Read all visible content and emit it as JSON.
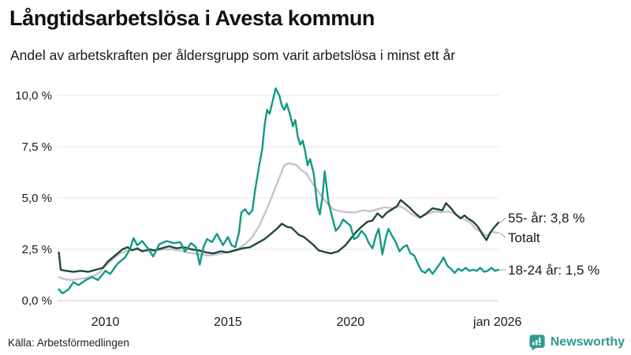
{
  "header": {
    "title": "Långtidsarbetslösa i Avesta kommun",
    "subtitle": "Andel av arbetskraften per åldersgrupp som varit arbetslösa i minst ett år"
  },
  "chart_data": {
    "type": "line",
    "title": "Långtidsarbetslösa i Avesta kommun",
    "subtitle": "Andel av arbetskraften per åldersgrupp som varit arbetslösa i minst ett år",
    "unit": "%",
    "x_axis": {
      "range": [
        2008.05,
        2026.04
      ],
      "ticks": [
        {
          "label": "2010",
          "year": 2010
        },
        {
          "label": "2015",
          "year": 2015
        },
        {
          "label": "2020",
          "year": 2020
        },
        {
          "label": "jan 2026",
          "year": 2026.0
        }
      ],
      "grid": false
    },
    "y_axis": {
      "range": [
        0,
        10.6
      ],
      "ticks": [
        {
          "label": "0,0 %",
          "value": 0
        },
        {
          "label": "2,5 %",
          "value": 2.5
        },
        {
          "label": "5,0 %",
          "value": 5
        },
        {
          "label": "7,5 %",
          "value": 7.5
        },
        {
          "label": "10,0 %",
          "value": 10
        }
      ],
      "grid": true
    },
    "style": {
      "grid_color": "#e4e4e8",
      "baseline_color": "#c9c9cf",
      "label_color": "#1a1a1a",
      "connector_color": "#9a9aa2"
    },
    "legend_position": "end-of-line",
    "series": [
      {
        "id": "totalt",
        "name": "Totalt",
        "end_label": "Totalt",
        "end_value": 3.3,
        "color": "#c5c3d0",
        "label_dy": 6,
        "points": [
          [
            2008.1,
            1.15
          ],
          [
            2008.3,
            1.05
          ],
          [
            2008.6,
            1.0
          ],
          [
            2008.9,
            1.05
          ],
          [
            2009.2,
            1.1
          ],
          [
            2009.5,
            1.2
          ],
          [
            2009.8,
            1.4
          ],
          [
            2010.0,
            1.7
          ],
          [
            2010.3,
            2.0
          ],
          [
            2010.6,
            2.3
          ],
          [
            2010.9,
            2.45
          ],
          [
            2011.2,
            2.5
          ],
          [
            2011.5,
            2.45
          ],
          [
            2011.8,
            2.4
          ],
          [
            2012.1,
            2.45
          ],
          [
            2012.4,
            2.5
          ],
          [
            2012.7,
            2.5
          ],
          [
            2013.0,
            2.45
          ],
          [
            2013.3,
            2.35
          ],
          [
            2013.6,
            2.3
          ],
          [
            2013.9,
            2.25
          ],
          [
            2014.2,
            2.2
          ],
          [
            2014.5,
            2.25
          ],
          [
            2014.8,
            2.3
          ],
          [
            2015.1,
            2.4
          ],
          [
            2015.4,
            2.5
          ],
          [
            2015.7,
            2.75
          ],
          [
            2016.0,
            3.1
          ],
          [
            2016.3,
            3.7
          ],
          [
            2016.6,
            4.5
          ],
          [
            2016.9,
            5.4
          ],
          [
            2017.1,
            6.0
          ],
          [
            2017.3,
            6.6
          ],
          [
            2017.5,
            6.7
          ],
          [
            2017.8,
            6.6
          ],
          [
            2018.0,
            6.35
          ],
          [
            2018.2,
            6.2
          ],
          [
            2018.4,
            5.8
          ],
          [
            2018.7,
            5.3
          ],
          [
            2019.0,
            4.8
          ],
          [
            2019.3,
            4.45
          ],
          [
            2019.6,
            4.35
          ],
          [
            2019.9,
            4.3
          ],
          [
            2020.2,
            4.3
          ],
          [
            2020.5,
            4.4
          ],
          [
            2020.8,
            4.35
          ],
          [
            2021.1,
            4.45
          ],
          [
            2021.4,
            4.55
          ],
          [
            2021.7,
            4.5
          ],
          [
            2022.0,
            4.6
          ],
          [
            2022.2,
            4.5
          ],
          [
            2022.5,
            4.2
          ],
          [
            2022.8,
            4.05
          ],
          [
            2023.1,
            4.2
          ],
          [
            2023.4,
            4.35
          ],
          [
            2023.7,
            4.3
          ],
          [
            2024.0,
            4.35
          ],
          [
            2024.3,
            4.2
          ],
          [
            2024.6,
            4.0
          ],
          [
            2024.9,
            3.8
          ],
          [
            2025.1,
            3.5
          ],
          [
            2025.35,
            3.35
          ],
          [
            2025.55,
            3.15
          ],
          [
            2025.75,
            3.35
          ],
          [
            2026.04,
            3.3
          ]
        ]
      },
      {
        "id": "55-ar",
        "name": "55- år",
        "end_label": "55- år: 3,8 %",
        "end_value": 3.8,
        "color": "#22473e",
        "label_dy": -6,
        "points": [
          [
            2008.1,
            2.35
          ],
          [
            2008.18,
            1.5
          ],
          [
            2008.4,
            1.45
          ],
          [
            2008.7,
            1.4
          ],
          [
            2009.0,
            1.45
          ],
          [
            2009.3,
            1.4
          ],
          [
            2009.6,
            1.5
          ],
          [
            2009.9,
            1.6
          ],
          [
            2010.1,
            1.9
          ],
          [
            2010.4,
            2.2
          ],
          [
            2010.7,
            2.5
          ],
          [
            2010.9,
            2.6
          ],
          [
            2011.1,
            2.45
          ],
          [
            2011.3,
            2.55
          ],
          [
            2011.5,
            2.4
          ],
          [
            2011.8,
            2.5
          ],
          [
            2012.0,
            2.45
          ],
          [
            2012.3,
            2.55
          ],
          [
            2012.6,
            2.65
          ],
          [
            2012.9,
            2.55
          ],
          [
            2013.2,
            2.6
          ],
          [
            2013.5,
            2.5
          ],
          [
            2013.8,
            2.45
          ],
          [
            2014.1,
            2.35
          ],
          [
            2014.4,
            2.3
          ],
          [
            2014.7,
            2.4
          ],
          [
            2015.0,
            2.35
          ],
          [
            2015.3,
            2.45
          ],
          [
            2015.6,
            2.55
          ],
          [
            2015.9,
            2.6
          ],
          [
            2016.2,
            2.8
          ],
          [
            2016.5,
            3.0
          ],
          [
            2016.8,
            3.3
          ],
          [
            2017.0,
            3.5
          ],
          [
            2017.2,
            3.75
          ],
          [
            2017.4,
            3.6
          ],
          [
            2017.6,
            3.55
          ],
          [
            2017.9,
            3.2
          ],
          [
            2018.1,
            3.1
          ],
          [
            2018.3,
            2.9
          ],
          [
            2018.5,
            2.7
          ],
          [
            2018.7,
            2.45
          ],
          [
            2019.0,
            2.35
          ],
          [
            2019.2,
            2.3
          ],
          [
            2019.5,
            2.4
          ],
          [
            2019.8,
            2.7
          ],
          [
            2020.0,
            3.0
          ],
          [
            2020.2,
            3.3
          ],
          [
            2020.45,
            3.6
          ],
          [
            2020.7,
            3.85
          ],
          [
            2020.9,
            3.9
          ],
          [
            2021.1,
            4.25
          ],
          [
            2021.3,
            4.05
          ],
          [
            2021.5,
            4.3
          ],
          [
            2021.7,
            4.45
          ],
          [
            2021.9,
            4.6
          ],
          [
            2022.05,
            4.9
          ],
          [
            2022.2,
            4.75
          ],
          [
            2022.4,
            4.55
          ],
          [
            2022.6,
            4.3
          ],
          [
            2022.85,
            4.05
          ],
          [
            2023.1,
            4.25
          ],
          [
            2023.35,
            4.5
          ],
          [
            2023.55,
            4.45
          ],
          [
            2023.75,
            4.4
          ],
          [
            2023.9,
            4.75
          ],
          [
            2024.1,
            4.5
          ],
          [
            2024.3,
            4.2
          ],
          [
            2024.5,
            4.0
          ],
          [
            2024.65,
            4.15
          ],
          [
            2024.8,
            4.0
          ],
          [
            2025.0,
            3.85
          ],
          [
            2025.2,
            3.6
          ],
          [
            2025.4,
            3.2
          ],
          [
            2025.55,
            2.95
          ],
          [
            2025.7,
            3.3
          ],
          [
            2025.85,
            3.55
          ],
          [
            2026.04,
            3.8
          ]
        ]
      },
      {
        "id": "18-24-ar",
        "name": "18-24 år",
        "end_label": "18-24 år: 1,5 %",
        "end_value": 1.5,
        "color": "#129a84",
        "label_dy": 0,
        "points": [
          [
            2008.1,
            0.55
          ],
          [
            2008.25,
            0.35
          ],
          [
            2008.5,
            0.55
          ],
          [
            2008.7,
            0.9
          ],
          [
            2008.9,
            0.75
          ],
          [
            2009.2,
            1.0
          ],
          [
            2009.45,
            1.15
          ],
          [
            2009.7,
            1.0
          ],
          [
            2010.0,
            1.45
          ],
          [
            2010.2,
            1.3
          ],
          [
            2010.5,
            1.8
          ],
          [
            2010.8,
            2.1
          ],
          [
            2011.0,
            2.5
          ],
          [
            2011.15,
            3.05
          ],
          [
            2011.3,
            2.7
          ],
          [
            2011.5,
            2.9
          ],
          [
            2011.7,
            2.6
          ],
          [
            2011.95,
            2.15
          ],
          [
            2012.2,
            2.75
          ],
          [
            2012.5,
            2.9
          ],
          [
            2012.8,
            2.8
          ],
          [
            2013.05,
            2.85
          ],
          [
            2013.25,
            2.4
          ],
          [
            2013.5,
            2.8
          ],
          [
            2013.7,
            2.6
          ],
          [
            2013.85,
            1.75
          ],
          [
            2014.0,
            2.6
          ],
          [
            2014.15,
            3.0
          ],
          [
            2014.35,
            2.85
          ],
          [
            2014.55,
            3.25
          ],
          [
            2014.8,
            2.7
          ],
          [
            2015.0,
            3.1
          ],
          [
            2015.15,
            2.7
          ],
          [
            2015.3,
            2.6
          ],
          [
            2015.45,
            3.3
          ],
          [
            2015.55,
            4.3
          ],
          [
            2015.7,
            4.45
          ],
          [
            2015.85,
            4.2
          ],
          [
            2016.0,
            4.4
          ],
          [
            2016.1,
            5.3
          ],
          [
            2016.25,
            6.4
          ],
          [
            2016.4,
            7.4
          ],
          [
            2016.5,
            8.6
          ],
          [
            2016.6,
            9.3
          ],
          [
            2016.7,
            9.1
          ],
          [
            2016.8,
            9.6
          ],
          [
            2016.95,
            10.35
          ],
          [
            2017.1,
            10.0
          ],
          [
            2017.2,
            9.5
          ],
          [
            2017.3,
            9.3
          ],
          [
            2017.4,
            9.6
          ],
          [
            2017.55,
            9.0
          ],
          [
            2017.65,
            8.5
          ],
          [
            2017.75,
            8.8
          ],
          [
            2017.85,
            8.0
          ],
          [
            2017.95,
            7.6
          ],
          [
            2018.05,
            7.8
          ],
          [
            2018.15,
            7.3
          ],
          [
            2018.25,
            6.6
          ],
          [
            2018.35,
            6.9
          ],
          [
            2018.5,
            6.2
          ],
          [
            2018.65,
            4.6
          ],
          [
            2018.75,
            4.2
          ],
          [
            2018.85,
            5.0
          ],
          [
            2018.95,
            6.3
          ],
          [
            2019.1,
            4.8
          ],
          [
            2019.25,
            4.1
          ],
          [
            2019.4,
            3.4
          ],
          [
            2019.55,
            3.6
          ],
          [
            2019.7,
            3.95
          ],
          [
            2019.85,
            3.8
          ],
          [
            2020.0,
            3.65
          ],
          [
            2020.15,
            3.0
          ],
          [
            2020.3,
            3.1
          ],
          [
            2020.45,
            3.4
          ],
          [
            2020.6,
            3.2
          ],
          [
            2020.75,
            2.8
          ],
          [
            2020.9,
            2.55
          ],
          [
            2021.05,
            3.2
          ],
          [
            2021.15,
            3.5
          ],
          [
            2021.3,
            2.25
          ],
          [
            2021.45,
            3.1
          ],
          [
            2021.55,
            3.5
          ],
          [
            2021.7,
            3.15
          ],
          [
            2021.85,
            2.85
          ],
          [
            2022.0,
            2.4
          ],
          [
            2022.15,
            2.6
          ],
          [
            2022.3,
            2.7
          ],
          [
            2022.45,
            2.3
          ],
          [
            2022.6,
            2.2
          ],
          [
            2022.75,
            1.8
          ],
          [
            2022.9,
            1.45
          ],
          [
            2023.05,
            1.35
          ],
          [
            2023.2,
            1.55
          ],
          [
            2023.35,
            1.3
          ],
          [
            2023.5,
            1.55
          ],
          [
            2023.65,
            1.8
          ],
          [
            2023.8,
            2.1
          ],
          [
            2023.95,
            1.7
          ],
          [
            2024.1,
            1.55
          ],
          [
            2024.25,
            1.35
          ],
          [
            2024.4,
            1.55
          ],
          [
            2024.55,
            1.45
          ],
          [
            2024.7,
            1.6
          ],
          [
            2024.85,
            1.45
          ],
          [
            2025.0,
            1.5
          ],
          [
            2025.15,
            1.45
          ],
          [
            2025.3,
            1.6
          ],
          [
            2025.45,
            1.4
          ],
          [
            2025.6,
            1.45
          ],
          [
            2025.75,
            1.6
          ],
          [
            2025.9,
            1.45
          ],
          [
            2026.04,
            1.5
          ]
        ]
      }
    ]
  },
  "footer": {
    "source": "Källa: Arbetsförmedlingen",
    "brand": "Newsworthy",
    "brand_color": "#2f9b90"
  }
}
